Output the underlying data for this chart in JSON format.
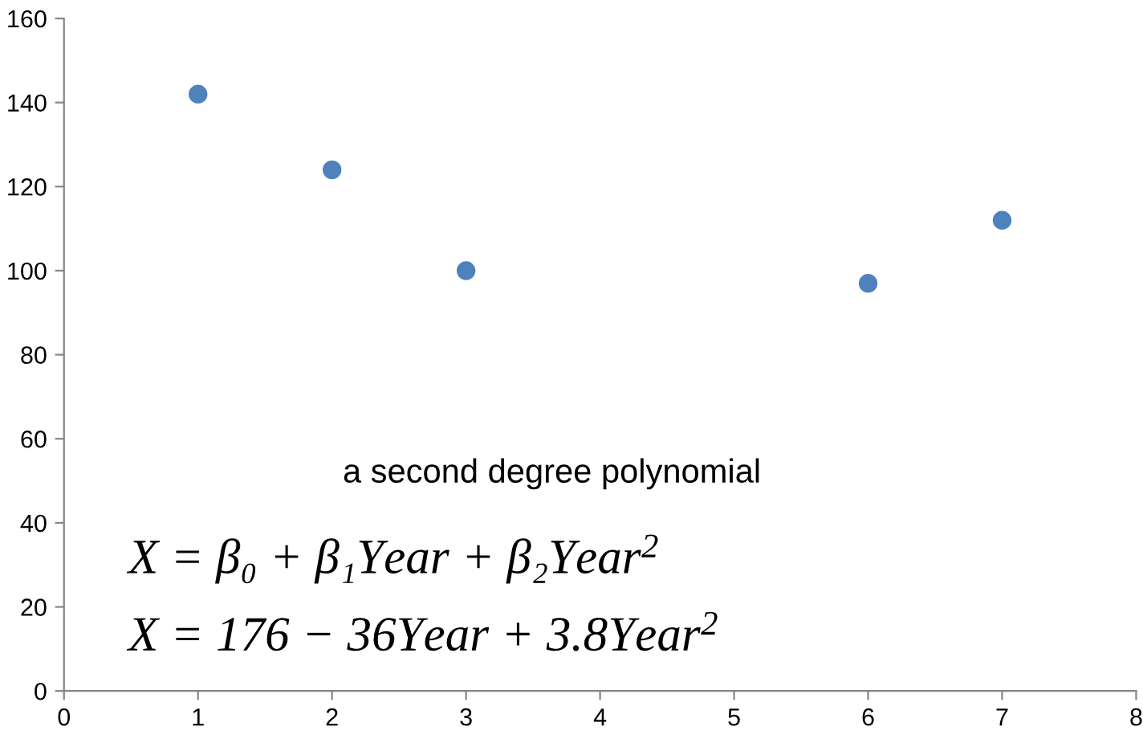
{
  "chart_data": {
    "type": "scatter",
    "x": [
      1,
      2,
      3,
      6,
      7
    ],
    "series": [
      {
        "color": "#4f81bd",
        "values": [
          142,
          124,
          100,
          97,
          112
        ]
      }
    ],
    "xlim": [
      0,
      8
    ],
    "xticks": [
      0,
      1,
      2,
      3,
      4,
      5,
      6,
      7,
      8
    ],
    "ylim": [
      0,
      160
    ],
    "yticks": [
      0,
      20,
      40,
      60,
      80,
      100,
      120,
      140,
      160
    ],
    "grid": false,
    "legend": false,
    "marker": "circle",
    "annotations": [
      "a second degree polynomial",
      "X = β₀ + β₁Year + β₂Year$^{2}$",
      "X = 176 − 36Year + 3.8Year$^{2}$"
    ]
  }
}
